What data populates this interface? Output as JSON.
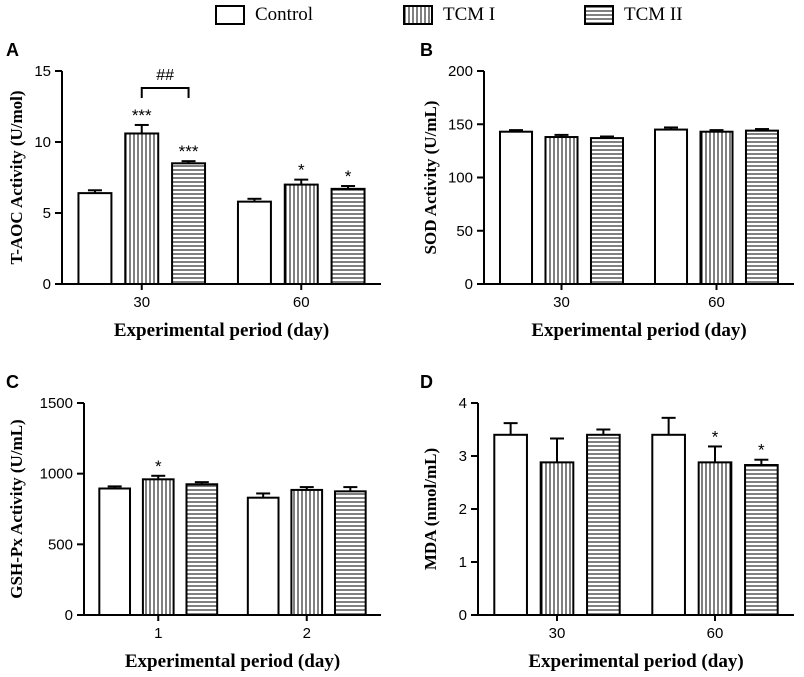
{
  "legend": [
    {
      "label": "Control",
      "pattern": "none"
    },
    {
      "label": "TCM I",
      "pattern": "vertical"
    },
    {
      "label": "TCM II",
      "pattern": "horizontal"
    }
  ],
  "chart_data": [
    {
      "panel": "A",
      "type": "bar",
      "ylabel": "T-AOC Activity (U/mol)",
      "xlabel": "Experimental period (day)",
      "categories": [
        "30",
        "60"
      ],
      "ylim": [
        0,
        15
      ],
      "yticks": [
        0,
        5,
        10,
        15
      ],
      "series": [
        {
          "name": "Control",
          "values": [
            6.4,
            5.8
          ],
          "errors": [
            0.2,
            0.2
          ],
          "sig": [
            "",
            ""
          ]
        },
        {
          "name": "TCM I",
          "values": [
            10.6,
            7.0
          ],
          "errors": [
            0.6,
            0.35
          ],
          "sig": [
            "***",
            "*"
          ]
        },
        {
          "name": "TCM II",
          "values": [
            8.5,
            6.7
          ],
          "errors": [
            0.15,
            0.2
          ],
          "sig": [
            "***",
            "*"
          ]
        }
      ],
      "bracket": {
        "label": "##",
        "category": 0,
        "from": 1,
        "to": 2,
        "y": 13.8
      }
    },
    {
      "panel": "B",
      "type": "bar",
      "ylabel": "SOD Activity (U/mL)",
      "xlabel": "Experimental period (day)",
      "categories": [
        "30",
        "60"
      ],
      "ylim": [
        0,
        200
      ],
      "yticks": [
        0,
        50,
        100,
        150,
        200
      ],
      "series": [
        {
          "name": "Control",
          "values": [
            143,
            145
          ],
          "errors": [
            1.5,
            2
          ],
          "sig": [
            "",
            ""
          ]
        },
        {
          "name": "TCM I",
          "values": [
            138,
            143
          ],
          "errors": [
            2,
            1.5
          ],
          "sig": [
            "",
            ""
          ]
        },
        {
          "name": "TCM II",
          "values": [
            137,
            144
          ],
          "errors": [
            1.5,
            1.5
          ],
          "sig": [
            "",
            ""
          ]
        }
      ]
    },
    {
      "panel": "C",
      "type": "bar",
      "ylabel": "GSH-Px Activity (U/mL)",
      "xlabel": "Experimental period (day)",
      "categories": [
        "1",
        "2"
      ],
      "ylim": [
        0,
        1500
      ],
      "yticks": [
        0,
        500,
        1000,
        1500
      ],
      "series": [
        {
          "name": "Control",
          "values": [
            895,
            830
          ],
          "errors": [
            15,
            30
          ],
          "sig": [
            "",
            ""
          ]
        },
        {
          "name": "TCM I",
          "values": [
            960,
            885
          ],
          "errors": [
            25,
            20
          ],
          "sig": [
            "*",
            ""
          ]
        },
        {
          "name": "TCM II",
          "values": [
            925,
            875
          ],
          "errors": [
            15,
            30
          ],
          "sig": [
            "",
            ""
          ]
        }
      ]
    },
    {
      "panel": "D",
      "type": "bar",
      "ylabel": "MDA (nmol/mL)",
      "xlabel": "Experimental period (day)",
      "categories": [
        "30",
        "60"
      ],
      "ylim": [
        0,
        4
      ],
      "yticks": [
        0,
        1,
        2,
        3,
        4
      ],
      "series": [
        {
          "name": "Control",
          "values": [
            3.4,
            3.4
          ],
          "errors": [
            0.22,
            0.32
          ],
          "sig": [
            "",
            ""
          ]
        },
        {
          "name": "TCM I",
          "values": [
            2.88,
            2.88
          ],
          "errors": [
            0.45,
            0.3
          ],
          "sig": [
            "",
            "*"
          ]
        },
        {
          "name": "TCM II",
          "values": [
            3.4,
            2.83
          ],
          "errors": [
            0.1,
            0.1
          ],
          "sig": [
            "",
            "*"
          ]
        }
      ]
    }
  ]
}
